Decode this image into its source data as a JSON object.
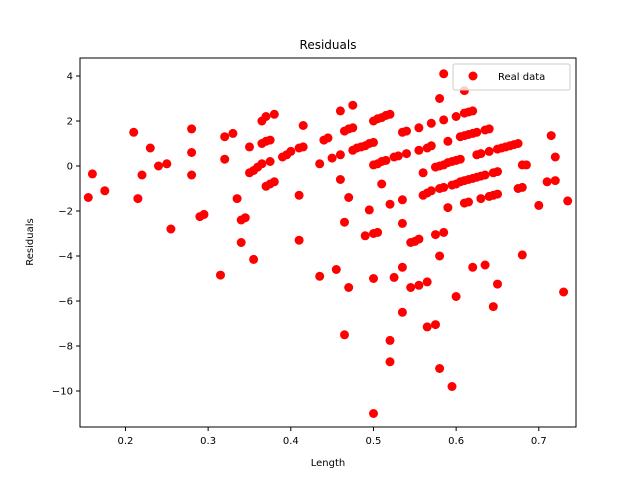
{
  "chart_data": {
    "type": "scatter",
    "title": "Residuals",
    "xlabel": "Length",
    "ylabel": "Residuals",
    "xlim": [
      0.145,
      0.745
    ],
    "ylim": [
      -11.6,
      4.8
    ],
    "xticks": [
      0.2,
      0.3,
      0.4,
      0.5,
      0.6,
      0.7
    ],
    "yticks": [
      -10,
      -8,
      -6,
      -4,
      -2,
      0,
      2,
      4
    ],
    "xtick_labels": [
      "0.2",
      "0.3",
      "0.4",
      "0.5",
      "0.6",
      "0.7"
    ],
    "ytick_labels": [
      "−10",
      "−8",
      "−6",
      "−4",
      "−2",
      "0",
      "2",
      "4"
    ],
    "grid": false,
    "legend_position": "top-right",
    "series": [
      {
        "name": "Real data",
        "color": "#ff0000",
        "marker": "circle",
        "points": [
          [
            0.155,
            -1.4
          ],
          [
            0.16,
            -0.35
          ],
          [
            0.175,
            -1.1
          ],
          [
            0.21,
            1.5
          ],
          [
            0.215,
            -1.45
          ],
          [
            0.22,
            -0.4
          ],
          [
            0.23,
            0.8
          ],
          [
            0.24,
            0.0
          ],
          [
            0.25,
            0.1
          ],
          [
            0.255,
            -2.8
          ],
          [
            0.28,
            1.65
          ],
          [
            0.28,
            0.6
          ],
          [
            0.28,
            -0.4
          ],
          [
            0.29,
            -2.25
          ],
          [
            0.295,
            -2.15
          ],
          [
            0.315,
            -4.85
          ],
          [
            0.32,
            1.3
          ],
          [
            0.32,
            0.3
          ],
          [
            0.33,
            1.45
          ],
          [
            0.335,
            -1.45
          ],
          [
            0.34,
            -2.4
          ],
          [
            0.34,
            -3.4
          ],
          [
            0.345,
            -2.3
          ],
          [
            0.35,
            0.85
          ],
          [
            0.35,
            -0.3
          ],
          [
            0.355,
            -0.2
          ],
          [
            0.355,
            -4.15
          ],
          [
            0.36,
            -0.05
          ],
          [
            0.365,
            2.0
          ],
          [
            0.365,
            1.0
          ],
          [
            0.365,
            0.1
          ],
          [
            0.37,
            2.2
          ],
          [
            0.37,
            1.1
          ],
          [
            0.37,
            -0.9
          ],
          [
            0.375,
            1.15
          ],
          [
            0.375,
            0.2
          ],
          [
            0.375,
            -0.8
          ],
          [
            0.38,
            2.3
          ],
          [
            0.38,
            -0.7
          ],
          [
            0.39,
            0.4
          ],
          [
            0.395,
            0.5
          ],
          [
            0.4,
            0.65
          ],
          [
            0.41,
            0.8
          ],
          [
            0.41,
            -1.3
          ],
          [
            0.41,
            -3.3
          ],
          [
            0.415,
            1.8
          ],
          [
            0.415,
            0.85
          ],
          [
            0.435,
            0.1
          ],
          [
            0.435,
            -4.9
          ],
          [
            0.44,
            1.15
          ],
          [
            0.445,
            1.25
          ],
          [
            0.45,
            0.35
          ],
          [
            0.455,
            -4.6
          ],
          [
            0.46,
            2.45
          ],
          [
            0.46,
            0.5
          ],
          [
            0.46,
            -0.6
          ],
          [
            0.465,
            1.55
          ],
          [
            0.465,
            -2.5
          ],
          [
            0.465,
            -7.5
          ],
          [
            0.47,
            1.65
          ],
          [
            0.47,
            -1.4
          ],
          [
            0.47,
            -5.4
          ],
          [
            0.475,
            2.7
          ],
          [
            0.475,
            1.7
          ],
          [
            0.475,
            0.7
          ],
          [
            0.48,
            0.8
          ],
          [
            0.485,
            0.85
          ],
          [
            0.49,
            0.9
          ],
          [
            0.49,
            -3.1
          ],
          [
            0.495,
            1.0
          ],
          [
            0.495,
            -1.95
          ],
          [
            0.5,
            2.0
          ],
          [
            0.5,
            1.05
          ],
          [
            0.5,
            0.05
          ],
          [
            0.5,
            -3.0
          ],
          [
            0.5,
            -5.0
          ],
          [
            0.5,
            -11.0
          ],
          [
            0.505,
            2.1
          ],
          [
            0.505,
            0.1
          ],
          [
            0.505,
            -2.95
          ],
          [
            0.51,
            2.15
          ],
          [
            0.51,
            0.2
          ],
          [
            0.51,
            -0.8
          ],
          [
            0.515,
            2.25
          ],
          [
            0.515,
            0.25
          ],
          [
            0.52,
            2.3
          ],
          [
            0.52,
            -1.7
          ],
          [
            0.52,
            -7.75
          ],
          [
            0.52,
            -8.7
          ],
          [
            0.525,
            0.4
          ],
          [
            0.525,
            -4.95
          ],
          [
            0.53,
            0.45
          ],
          [
            0.535,
            1.5
          ],
          [
            0.535,
            -1.5
          ],
          [
            0.535,
            -2.55
          ],
          [
            0.535,
            -4.5
          ],
          [
            0.535,
            -6.5
          ],
          [
            0.54,
            1.55
          ],
          [
            0.54,
            0.55
          ],
          [
            0.545,
            -3.4
          ],
          [
            0.545,
            -5.4
          ],
          [
            0.55,
            -3.35
          ],
          [
            0.555,
            1.7
          ],
          [
            0.555,
            0.7
          ],
          [
            0.555,
            -3.25
          ],
          [
            0.555,
            -5.3
          ],
          [
            0.56,
            -0.3
          ],
          [
            0.56,
            -1.3
          ],
          [
            0.565,
            0.8
          ],
          [
            0.565,
            -1.2
          ],
          [
            0.565,
            -5.15
          ],
          [
            0.565,
            -7.15
          ],
          [
            0.57,
            1.9
          ],
          [
            0.57,
            0.9
          ],
          [
            0.57,
            -1.1
          ],
          [
            0.575,
            -0.05
          ],
          [
            0.575,
            -3.05
          ],
          [
            0.575,
            -7.05
          ],
          [
            0.58,
            3.0
          ],
          [
            0.58,
            0.0
          ],
          [
            0.58,
            -1.0
          ],
          [
            0.58,
            -4.0
          ],
          [
            0.58,
            -9.0
          ],
          [
            0.585,
            4.1
          ],
          [
            0.585,
            2.05
          ],
          [
            0.585,
            0.05
          ],
          [
            0.585,
            -0.95
          ],
          [
            0.585,
            -2.95
          ],
          [
            0.59,
            1.1
          ],
          [
            0.59,
            0.15
          ],
          [
            0.59,
            -1.85
          ],
          [
            0.595,
            0.2
          ],
          [
            0.595,
            -0.85
          ],
          [
            0.595,
            -9.8
          ],
          [
            0.6,
            2.2
          ],
          [
            0.6,
            0.25
          ],
          [
            0.6,
            -0.8
          ],
          [
            0.6,
            -5.8
          ],
          [
            0.605,
            1.3
          ],
          [
            0.605,
            0.3
          ],
          [
            0.605,
            -0.7
          ],
          [
            0.61,
            3.35
          ],
          [
            0.61,
            2.35
          ],
          [
            0.61,
            1.35
          ],
          [
            0.61,
            -0.65
          ],
          [
            0.61,
            -1.65
          ],
          [
            0.615,
            2.4
          ],
          [
            0.615,
            1.4
          ],
          [
            0.615,
            -0.6
          ],
          [
            0.615,
            -1.6
          ],
          [
            0.62,
            2.45
          ],
          [
            0.62,
            1.45
          ],
          [
            0.62,
            -0.55
          ],
          [
            0.62,
            -4.5
          ],
          [
            0.625,
            1.5
          ],
          [
            0.625,
            0.5
          ],
          [
            0.625,
            -0.5
          ],
          [
            0.63,
            0.55
          ],
          [
            0.63,
            -0.45
          ],
          [
            0.63,
            -1.45
          ],
          [
            0.635,
            1.6
          ],
          [
            0.635,
            -0.4
          ],
          [
            0.635,
            -4.4
          ],
          [
            0.64,
            1.65
          ],
          [
            0.64,
            0.65
          ],
          [
            0.64,
            -1.35
          ],
          [
            0.645,
            -0.3
          ],
          [
            0.645,
            -1.3
          ],
          [
            0.645,
            -6.25
          ],
          [
            0.65,
            0.75
          ],
          [
            0.65,
            -0.25
          ],
          [
            0.65,
            -1.25
          ],
          [
            0.65,
            -5.25
          ],
          [
            0.655,
            0.8
          ],
          [
            0.66,
            0.85
          ],
          [
            0.665,
            0.9
          ],
          [
            0.67,
            0.95
          ],
          [
            0.675,
            1.0
          ],
          [
            0.675,
            -1.0
          ],
          [
            0.68,
            0.05
          ],
          [
            0.68,
            -0.95
          ],
          [
            0.68,
            -3.95
          ],
          [
            0.685,
            0.05
          ],
          [
            0.7,
            -1.75
          ],
          [
            0.71,
            -0.7
          ],
          [
            0.715,
            1.35
          ],
          [
            0.72,
            0.4
          ],
          [
            0.72,
            -0.65
          ],
          [
            0.73,
            -5.6
          ],
          [
            0.735,
            -1.55
          ]
        ]
      }
    ]
  }
}
